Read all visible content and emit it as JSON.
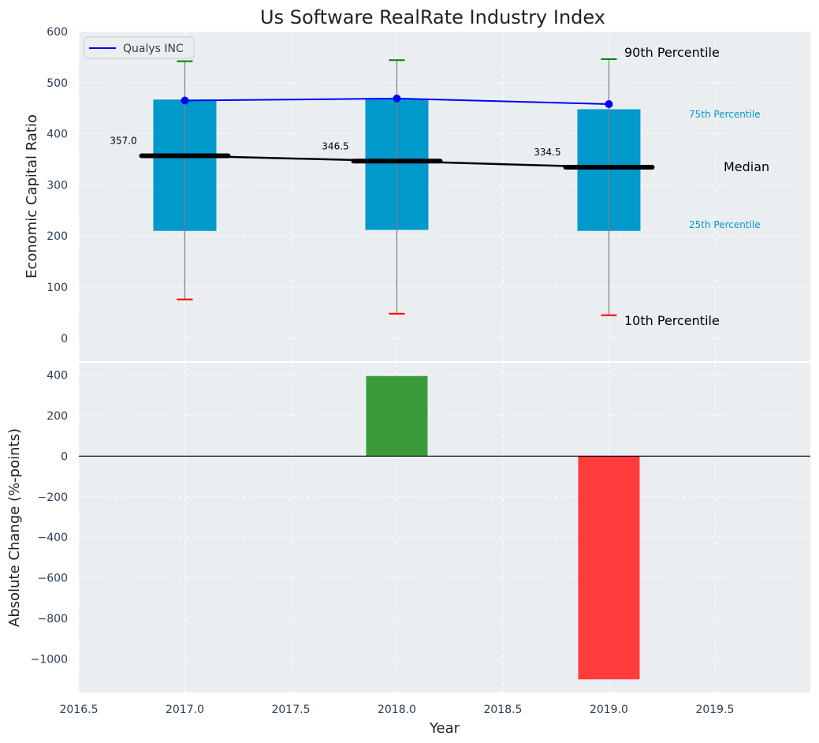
{
  "chart_data": [
    {
      "type": "box",
      "title": "Us Software RealRate Industry Index",
      "ylabel": "Economic Capital Ratio",
      "xlim": [
        2016.5,
        2019.95
      ],
      "ylim": [
        -45,
        600
      ],
      "yticks": [
        0,
        100,
        200,
        300,
        400,
        500,
        600
      ],
      "grid": true,
      "legend": {
        "position": "upper-left",
        "entries": [
          {
            "label": "Qualys INC",
            "color": "#0000ff"
          }
        ]
      },
      "categories": [
        2017,
        2018,
        2019
      ],
      "p10": [
        76,
        48,
        45
      ],
      "p25": [
        210,
        212,
        210
      ],
      "median": [
        357.0,
        346.5,
        334.5
      ],
      "median_labels": [
        "357.0",
        "346.5",
        "334.5"
      ],
      "p75": [
        467,
        468,
        448
      ],
      "p90": [
        542,
        544,
        546
      ],
      "series": [
        {
          "name": "Qualys INC",
          "x": [
            2017,
            2018,
            2019
          ],
          "values": [
            465,
            469,
            458
          ],
          "color": "#0000ff"
        }
      ],
      "annotations": {
        "p90": "90th Percentile",
        "p75": "75th Percentile",
        "median": "Median",
        "p25": "25th Percentile",
        "p10": "10th Percentile"
      },
      "colors": {
        "box": "#0099cc",
        "p90_cap": "#008000",
        "p10_cap": "#ff0000",
        "median": "#000000"
      }
    },
    {
      "type": "bar",
      "ylabel": "Absolute Change (%-points)",
      "xlabel": "Year",
      "xlim": [
        2016.5,
        2019.95
      ],
      "ylim": [
        -1165,
        460
      ],
      "xticks": [
        2016.5,
        2017.0,
        2017.5,
        2018.0,
        2018.5,
        2019.0,
        2019.5
      ],
      "xtick_labels": [
        "2016.5",
        "2017.0",
        "2017.5",
        "2018.0",
        "2018.5",
        "2019.0",
        "2019.5"
      ],
      "yticks": [
        400,
        200,
        0,
        -200,
        -400,
        -600,
        -800,
        -1000
      ],
      "ytick_labels": [
        "400",
        "200",
        "0",
        "−200",
        "−400",
        "−600",
        "−800",
        "−1000"
      ],
      "grid": true,
      "categories": [
        2018,
        2019
      ],
      "values": [
        395,
        -1100
      ],
      "colors": {
        "positive": "#3a9a3a",
        "negative": "#ff3b3b"
      }
    }
  ]
}
